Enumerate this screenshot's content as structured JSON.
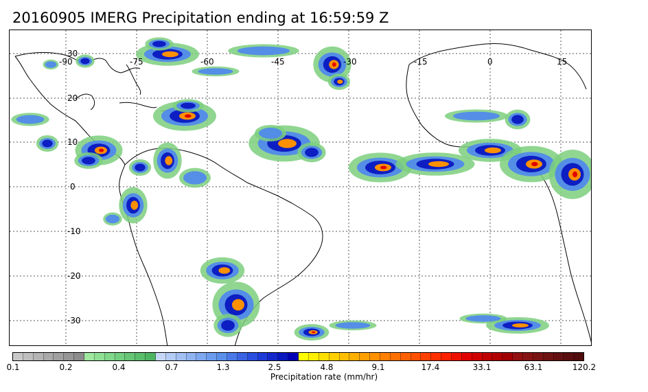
{
  "title": "20160905 IMERG Precipitation ending at 16:59:59 Z",
  "map": {
    "lon_labels": [
      "-90",
      "-75",
      "-60",
      "-45",
      "-30",
      "-15",
      "0",
      "15"
    ],
    "lat_labels": [
      "30",
      "20",
      "10",
      "0",
      "-10",
      "-20",
      "-30"
    ],
    "lon_range": [
      -101,
      20
    ],
    "lat_range": [
      35,
      -35
    ],
    "grid_lines": "dotted"
  },
  "colorbar": {
    "title": "Precipitation rate (mm/hr)",
    "tick_labels": [
      "0.1",
      "0.2",
      "0.4",
      "0.7",
      "1.3",
      "2.5",
      "4.8",
      "9.1",
      "17.4",
      "33.1",
      "63.1",
      "120.2"
    ],
    "colors": [
      "#c8c8c8",
      "#bebebe",
      "#b4b4b4",
      "#aaaaaa",
      "#a0a0a0",
      "#969696",
      "#8c8c8c",
      "#9ee8a0",
      "#8fe095",
      "#80d88a",
      "#73cf80",
      "#66c676",
      "#5abd6c",
      "#4fb462",
      "#c6d8f8",
      "#b4ccf6",
      "#a2c0f4",
      "#90b4f2",
      "#7ea8f0",
      "#6c9cee",
      "#5a90ec",
      "#4a7ae8",
      "#3a64e4",
      "#2a4ee0",
      "#1e3ad8",
      "#1428cc",
      "#0a18c0",
      "#0000b4",
      "#ffff00",
      "#ffef00",
      "#ffdf00",
      "#ffcf00",
      "#ffbf00",
      "#ffaf00",
      "#ff9f00",
      "#ff9000",
      "#ff8000",
      "#ff7000",
      "#ff6000",
      "#ff5000",
      "#ff4000",
      "#ff3000",
      "#ff2000",
      "#f01000",
      "#e00000",
      "#d00000",
      "#c00000",
      "#b00000",
      "#a00000",
      "#921010",
      "#861414",
      "#7a1414",
      "#6e1212",
      "#641010",
      "#5a0e0e",
      "#500c0c"
    ]
  },
  "precip_palette": {
    "light": "#7ccf7e",
    "blue": "#4f86f0",
    "dark_blue": "#0a18c0",
    "orange": "#ff9000",
    "red": "#e00000"
  }
}
